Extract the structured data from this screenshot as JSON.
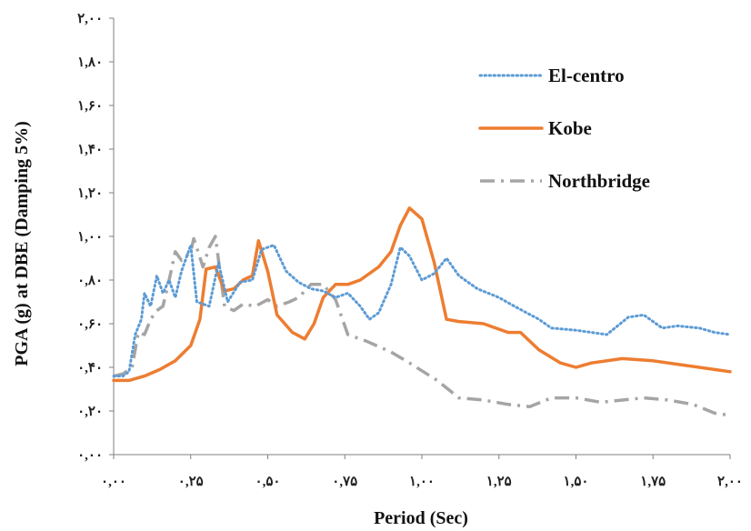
{
  "chart_data": {
    "type": "line",
    "title": "",
    "xlabel": "Period (Sec)",
    "ylabel": "PGA (g) at DBE (Damping 5%)",
    "xlim": [
      0,
      2
    ],
    "ylim": [
      0,
      2
    ],
    "x_ticks": [
      0,
      0.25,
      0.5,
      0.75,
      1.0,
      1.25,
      1.5,
      1.75,
      2.0
    ],
    "x_tick_labels": [
      "۰,۰۰",
      "۰,۲۵",
      "۰,۵۰",
      "۰,۷۵",
      "۱,۰۰",
      "۱,۲۵",
      "۱,۵۰",
      "۱,۷۵",
      "۲,۰۰"
    ],
    "y_ticks": [
      0,
      0.2,
      0.4,
      0.6,
      0.8,
      1.0,
      1.2,
      1.4,
      1.6,
      1.8,
      2.0
    ],
    "y_tick_labels": [
      "۰,۰۰",
      "۰,۲۰",
      "۰,۴۰",
      "۰,۶۰",
      "۰,۸۰",
      "۱,۰۰",
      "۱,۲۰",
      "۱,۴۰",
      "۱,۶۰",
      "۱,۸۰",
      "۲,۰۰"
    ],
    "grid": false,
    "legend_position": "top-right",
    "series": [
      {
        "name": "El-centro",
        "color": "#5b9bd5",
        "style": "dotted",
        "points": [
          [
            0,
            0.36
          ],
          [
            0.03,
            0.36
          ],
          [
            0.05,
            0.38
          ],
          [
            0.07,
            0.55
          ],
          [
            0.09,
            0.62
          ],
          [
            0.1,
            0.74
          ],
          [
            0.12,
            0.68
          ],
          [
            0.14,
            0.82
          ],
          [
            0.16,
            0.74
          ],
          [
            0.18,
            0.8
          ],
          [
            0.2,
            0.72
          ],
          [
            0.22,
            0.84
          ],
          [
            0.25,
            0.96
          ],
          [
            0.27,
            0.7
          ],
          [
            0.31,
            0.68
          ],
          [
            0.34,
            0.88
          ],
          [
            0.37,
            0.7
          ],
          [
            0.41,
            0.79
          ],
          [
            0.45,
            0.8
          ],
          [
            0.48,
            0.94
          ],
          [
            0.52,
            0.96
          ],
          [
            0.56,
            0.84
          ],
          [
            0.6,
            0.79
          ],
          [
            0.64,
            0.76
          ],
          [
            0.68,
            0.75
          ],
          [
            0.72,
            0.72
          ],
          [
            0.76,
            0.74
          ],
          [
            0.8,
            0.68
          ],
          [
            0.83,
            0.62
          ],
          [
            0.86,
            0.65
          ],
          [
            0.9,
            0.78
          ],
          [
            0.93,
            0.95
          ],
          [
            0.96,
            0.91
          ],
          [
            1.0,
            0.8
          ],
          [
            1.04,
            0.83
          ],
          [
            1.08,
            0.9
          ],
          [
            1.12,
            0.82
          ],
          [
            1.18,
            0.76
          ],
          [
            1.25,
            0.72
          ],
          [
            1.3,
            0.68
          ],
          [
            1.38,
            0.62
          ],
          [
            1.42,
            0.58
          ],
          [
            1.5,
            0.57
          ],
          [
            1.6,
            0.55
          ],
          [
            1.67,
            0.63
          ],
          [
            1.72,
            0.64
          ],
          [
            1.78,
            0.58
          ],
          [
            1.83,
            0.59
          ],
          [
            1.9,
            0.58
          ],
          [
            1.95,
            0.56
          ],
          [
            2.0,
            0.55
          ]
        ]
      },
      {
        "name": "Kobe",
        "color": "#ed7d31",
        "style": "solid",
        "points": [
          [
            0,
            0.34
          ],
          [
            0.05,
            0.34
          ],
          [
            0.1,
            0.36
          ],
          [
            0.15,
            0.39
          ],
          [
            0.2,
            0.43
          ],
          [
            0.25,
            0.5
          ],
          [
            0.28,
            0.62
          ],
          [
            0.3,
            0.85
          ],
          [
            0.33,
            0.86
          ],
          [
            0.36,
            0.75
          ],
          [
            0.39,
            0.76
          ],
          [
            0.42,
            0.8
          ],
          [
            0.45,
            0.82
          ],
          [
            0.47,
            0.98
          ],
          [
            0.5,
            0.84
          ],
          [
            0.53,
            0.64
          ],
          [
            0.58,
            0.56
          ],
          [
            0.62,
            0.53
          ],
          [
            0.65,
            0.6
          ],
          [
            0.68,
            0.72
          ],
          [
            0.72,
            0.78
          ],
          [
            0.76,
            0.78
          ],
          [
            0.8,
            0.8
          ],
          [
            0.86,
            0.86
          ],
          [
            0.9,
            0.93
          ],
          [
            0.93,
            1.05
          ],
          [
            0.96,
            1.13
          ],
          [
            1.0,
            1.08
          ],
          [
            1.04,
            0.88
          ],
          [
            1.08,
            0.62
          ],
          [
            1.12,
            0.61
          ],
          [
            1.2,
            0.6
          ],
          [
            1.28,
            0.56
          ],
          [
            1.32,
            0.56
          ],
          [
            1.38,
            0.48
          ],
          [
            1.45,
            0.42
          ],
          [
            1.5,
            0.4
          ],
          [
            1.55,
            0.42
          ],
          [
            1.65,
            0.44
          ],
          [
            1.75,
            0.43
          ],
          [
            1.85,
            0.41
          ],
          [
            1.95,
            0.39
          ],
          [
            2.0,
            0.38
          ]
        ]
      },
      {
        "name": "Northbridge",
        "color": "#a5a5a5",
        "style": "dashdot",
        "points": [
          [
            0,
            0.36
          ],
          [
            0.03,
            0.37
          ],
          [
            0.06,
            0.4
          ],
          [
            0.08,
            0.56
          ],
          [
            0.1,
            0.55
          ],
          [
            0.12,
            0.62
          ],
          [
            0.14,
            0.66
          ],
          [
            0.16,
            0.68
          ],
          [
            0.18,
            0.8
          ],
          [
            0.2,
            0.93
          ],
          [
            0.22,
            0.89
          ],
          [
            0.25,
            0.93
          ],
          [
            0.26,
            0.99
          ],
          [
            0.29,
            0.86
          ],
          [
            0.31,
            0.95
          ],
          [
            0.33,
            1.0
          ],
          [
            0.36,
            0.68
          ],
          [
            0.39,
            0.66
          ],
          [
            0.42,
            0.69
          ],
          [
            0.46,
            0.68
          ],
          [
            0.5,
            0.71
          ],
          [
            0.53,
            0.68
          ],
          [
            0.57,
            0.7
          ],
          [
            0.6,
            0.72
          ],
          [
            0.64,
            0.78
          ],
          [
            0.68,
            0.78
          ],
          [
            0.72,
            0.71
          ],
          [
            0.76,
            0.55
          ],
          [
            0.82,
            0.52
          ],
          [
            0.9,
            0.47
          ],
          [
            0.96,
            0.42
          ],
          [
            1.05,
            0.34
          ],
          [
            1.12,
            0.26
          ],
          [
            1.2,
            0.25
          ],
          [
            1.28,
            0.23
          ],
          [
            1.35,
            0.22
          ],
          [
            1.42,
            0.26
          ],
          [
            1.5,
            0.26
          ],
          [
            1.58,
            0.24
          ],
          [
            1.65,
            0.25
          ],
          [
            1.72,
            0.26
          ],
          [
            1.8,
            0.25
          ],
          [
            1.88,
            0.23
          ],
          [
            1.95,
            0.19
          ],
          [
            2.0,
            0.18
          ]
        ]
      }
    ]
  }
}
